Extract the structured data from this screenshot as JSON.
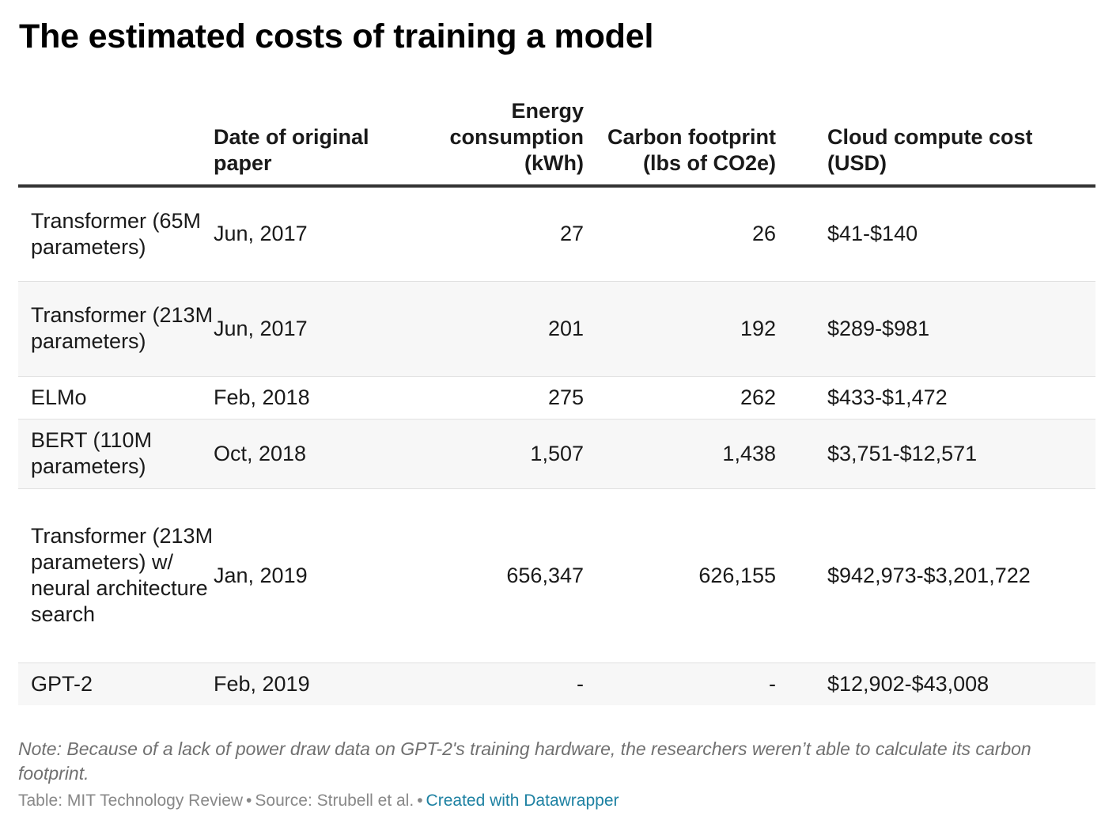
{
  "title": "The estimated costs of training a model",
  "table": {
    "headers": {
      "model": "",
      "date": "Date of original paper",
      "energy": "Energy consumption (kWh)",
      "carbon": "Carbon footprint (lbs of CO2e)",
      "cost": "Cloud compute cost (USD)"
    },
    "rows": [
      {
        "model": "Transformer (65M parameters)",
        "date": "Jun, 2017",
        "energy": "27",
        "carbon": "26",
        "cost": "$41-$140"
      },
      {
        "model": "Transformer (213M parameters)",
        "date": "Jun, 2017",
        "energy": "201",
        "carbon": "192",
        "cost": "$289-$981"
      },
      {
        "model": "ELMo",
        "date": "Feb, 2018",
        "energy": "275",
        "carbon": "262",
        "cost": "$433-$1,472"
      },
      {
        "model": "BERT (110M parameters)",
        "date": "Oct, 2018",
        "energy": "1,507",
        "carbon": "1,438",
        "cost": "$3,751-$12,571"
      },
      {
        "model": "Transformer (213M parameters) w/ neural architecture search",
        "date": "Jan, 2019",
        "energy": "656,347",
        "carbon": "626,155",
        "cost": "$942,973-$3,201,722"
      },
      {
        "model": "GPT-2",
        "date": "Feb, 2019",
        "energy": "-",
        "carbon": "-",
        "cost": "$12,902-$43,008"
      }
    ]
  },
  "note": "Note: Because of a lack of power draw data on GPT-2's training hardware, the researchers weren’t able to calculate its carbon footprint.",
  "footer": {
    "table_credit": "Table: MIT Technology Review",
    "separator": "•",
    "source": "Source: Strubell et al.",
    "created_with": "Created with Datawrapper"
  },
  "colors": {
    "text": "#1a1a1a",
    "stripe": "#f7f7f7",
    "note": "#707070",
    "footer": "#888888",
    "link": "#1d81a2"
  }
}
